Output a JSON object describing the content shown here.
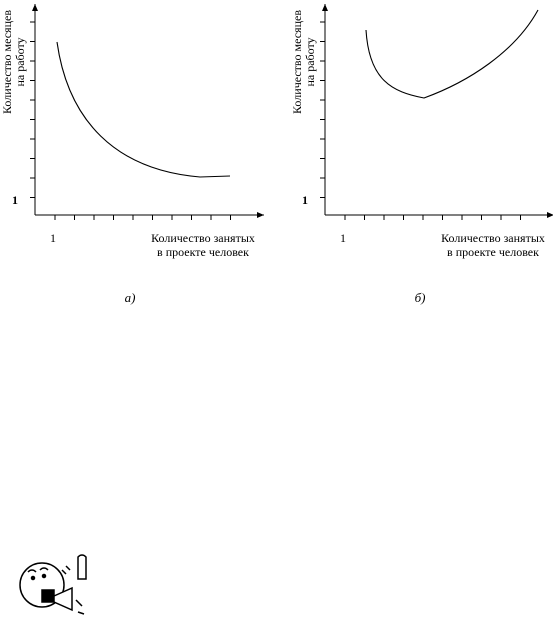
{
  "charts": [
    {
      "y_label": [
        "Количество месяцев",
        "на работу"
      ],
      "y_tick": "1",
      "x_tick": "1",
      "x_label": [
        "Количество занятых",
        "в проекте человек"
      ],
      "caption": "а)"
    },
    {
      "y_label": [
        "Количество месяцев",
        "на работу"
      ],
      "y_tick": "1",
      "x_tick": "1",
      "x_label": [
        "Количество занятых",
        "в проекте человек"
      ],
      "caption": "б)"
    }
  ]
}
